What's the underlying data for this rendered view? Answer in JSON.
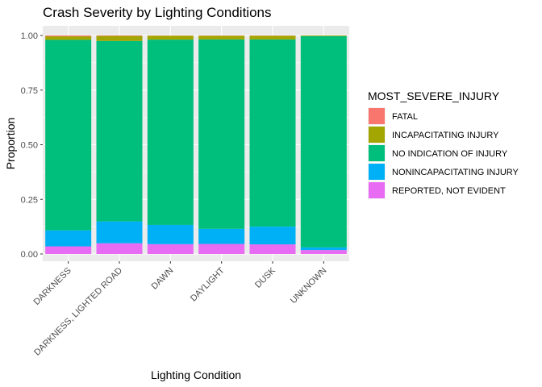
{
  "chart_data": {
    "type": "bar",
    "stacked": true,
    "title": "Crash Severity by Lighting Conditions",
    "xlabel": "Lighting Condition",
    "ylabel": "Proportion",
    "ylim": [
      0,
      1
    ],
    "y_ticks": [
      "0.00",
      "0.25",
      "0.50",
      "0.75",
      "1.00"
    ],
    "y_tick_values": [
      0,
      0.25,
      0.5,
      0.75,
      1.0
    ],
    "grid": true,
    "legend_position": "right",
    "legend_title": "MOST_SEVERE_INJURY",
    "categories": [
      "DARKNESS",
      "DARKNESS, LIGHTED ROAD",
      "DAWN",
      "DAYLIGHT",
      "DUSK",
      "UNKNOWN"
    ],
    "series": [
      {
        "name": "FATAL",
        "color": "#F8766D",
        "values": [
          0.004,
          0.002,
          0.001,
          0.001,
          0.001,
          0.0
        ]
      },
      {
        "name": "INCAPACITATING INJURY",
        "color": "#A3A500",
        "values": [
          0.016,
          0.023,
          0.018,
          0.017,
          0.017,
          0.003
        ]
      },
      {
        "name": "NO INDICATION OF INJURY",
        "color": "#00BF7D",
        "values": [
          0.872,
          0.826,
          0.848,
          0.867,
          0.857,
          0.967
        ]
      },
      {
        "name": "NONINCAPACITATING INJURY",
        "color": "#00B0F6",
        "values": [
          0.073,
          0.1,
          0.088,
          0.069,
          0.081,
          0.012
        ]
      },
      {
        "name": "REPORTED, NOT EVIDENT",
        "color": "#E76BF3",
        "values": [
          0.035,
          0.049,
          0.045,
          0.046,
          0.044,
          0.018
        ]
      }
    ]
  }
}
